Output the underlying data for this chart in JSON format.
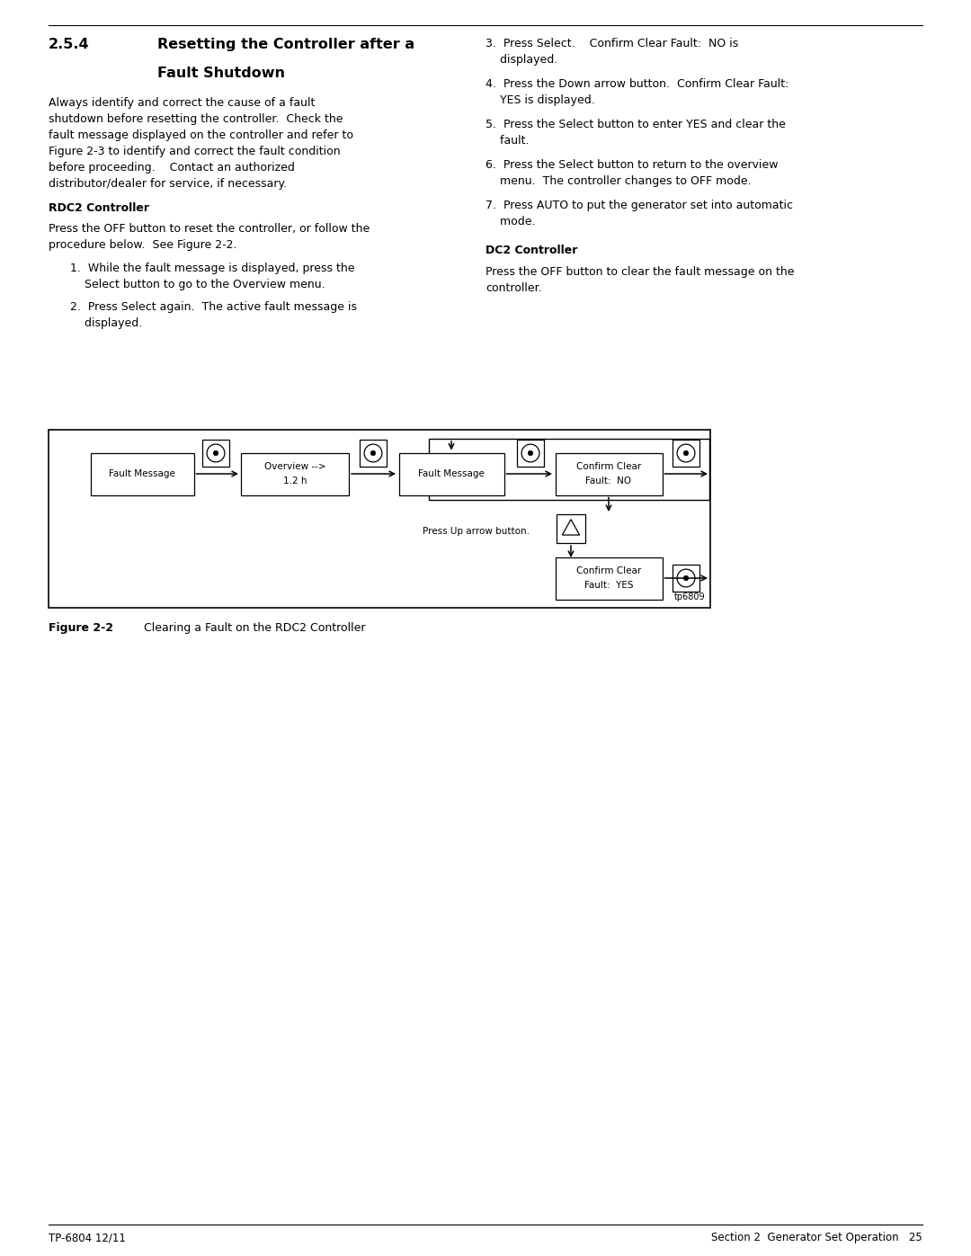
{
  "page_width": 10.8,
  "page_height": 13.97,
  "bg_color": "#ffffff",
  "footer_left": "TP-6804 12/11",
  "footer_right": "Section 2  Generator Set Operation   25",
  "figure_id": "tp6809",
  "figure_label": "Figure 2-2",
  "figure_caption": "Clearing a Fault on the RDC2 Controller"
}
